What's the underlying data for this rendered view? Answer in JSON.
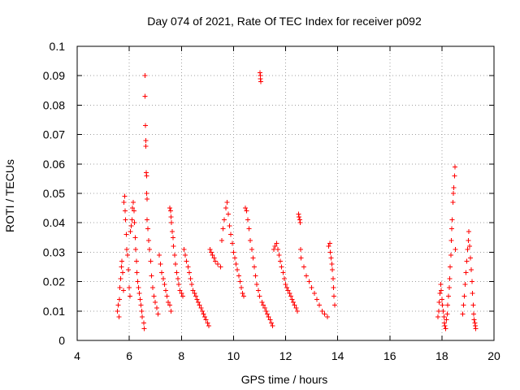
{
  "chart_data": {
    "type": "scatter",
    "title": "Day 074 of 2021, Rate Of TEC Index for receiver p092",
    "xlabel": "GPS time / hours",
    "ylabel": "ROTI / TECUs",
    "xlim": [
      4,
      20
    ],
    "ylim": [
      0,
      0.1
    ],
    "x_ticks": [
      4,
      6,
      8,
      10,
      12,
      14,
      16,
      18,
      20
    ],
    "y_ticks": [
      0,
      0.01,
      0.02,
      0.03,
      0.04,
      0.05,
      0.06,
      0.07,
      0.08,
      0.09,
      0.1
    ],
    "x_tick_labels": [
      "4",
      "6",
      "8",
      "10",
      "12",
      "14",
      "16",
      "18",
      "20"
    ],
    "y_tick_labels": [
      "0",
      "0.01",
      "0.02",
      "0.03",
      "0.04",
      "0.05",
      "0.06",
      "0.07",
      "0.08",
      "0.09",
      "0.1"
    ],
    "grid": true,
    "marker": "plus",
    "series": [
      {
        "name": "ROTI",
        "color": "#ff0000",
        "points": [
          [
            5.55,
            0.01
          ],
          [
            5.58,
            0.012
          ],
          [
            5.6,
            0.008
          ],
          [
            5.62,
            0.014
          ],
          [
            5.64,
            0.018
          ],
          [
            5.67,
            0.021
          ],
          [
            5.7,
            0.025
          ],
          [
            5.72,
            0.027
          ],
          [
            5.74,
            0.023
          ],
          [
            5.77,
            0.017
          ],
          [
            5.8,
            0.047
          ],
          [
            5.82,
            0.049
          ],
          [
            5.84,
            0.044
          ],
          [
            5.86,
            0.041
          ],
          [
            5.89,
            0.036
          ],
          [
            5.91,
            0.031
          ],
          [
            5.94,
            0.029
          ],
          [
            5.96,
            0.024
          ],
          [
            5.99,
            0.018
          ],
          [
            6.02,
            0.015
          ],
          [
            6.05,
            0.037
          ],
          [
            6.08,
            0.039
          ],
          [
            6.1,
            0.041
          ],
          [
            6.12,
            0.045
          ],
          [
            6.15,
            0.047
          ],
          [
            6.18,
            0.044
          ],
          [
            6.2,
            0.04
          ],
          [
            6.23,
            0.035
          ],
          [
            6.25,
            0.031
          ],
          [
            6.28,
            0.027
          ],
          [
            6.3,
            0.023
          ],
          [
            6.33,
            0.02
          ],
          [
            6.36,
            0.018
          ],
          [
            6.39,
            0.016
          ],
          [
            6.42,
            0.014
          ],
          [
            6.45,
            0.012
          ],
          [
            6.48,
            0.01
          ],
          [
            6.5,
            0.008
          ],
          [
            6.55,
            0.006
          ],
          [
            6.58,
            0.004
          ],
          [
            6.6,
            0.083
          ],
          [
            6.61,
            0.09
          ],
          [
            6.62,
            0.073
          ],
          [
            6.63,
            0.068
          ],
          [
            6.64,
            0.066
          ],
          [
            6.65,
            0.057
          ],
          [
            6.66,
            0.056
          ],
          [
            6.67,
            0.05
          ],
          [
            6.68,
            0.048
          ],
          [
            6.69,
            0.041
          ],
          [
            6.72,
            0.038
          ],
          [
            6.75,
            0.034
          ],
          [
            6.78,
            0.031
          ],
          [
            6.82,
            0.027
          ],
          [
            6.86,
            0.022
          ],
          [
            6.9,
            0.018
          ],
          [
            6.95,
            0.015
          ],
          [
            7.0,
            0.013
          ],
          [
            7.05,
            0.011
          ],
          [
            7.1,
            0.009
          ],
          [
            7.15,
            0.029
          ],
          [
            7.2,
            0.026
          ],
          [
            7.25,
            0.023
          ],
          [
            7.3,
            0.021
          ],
          [
            7.35,
            0.019
          ],
          [
            7.4,
            0.017
          ],
          [
            7.45,
            0.015
          ],
          [
            7.5,
            0.013
          ],
          [
            7.55,
            0.012
          ],
          [
            7.6,
            0.01
          ],
          [
            7.55,
            0.045
          ],
          [
            7.58,
            0.044
          ],
          [
            7.6,
            0.042
          ],
          [
            7.62,
            0.04
          ],
          [
            7.65,
            0.037
          ],
          [
            7.68,
            0.035
          ],
          [
            7.7,
            0.032
          ],
          [
            7.74,
            0.029
          ],
          [
            7.78,
            0.026
          ],
          [
            7.82,
            0.023
          ],
          [
            7.86,
            0.021
          ],
          [
            7.9,
            0.019
          ],
          [
            7.95,
            0.017
          ],
          [
            8.0,
            0.016
          ],
          [
            8.05,
            0.015
          ],
          [
            8.1,
            0.031
          ],
          [
            8.15,
            0.029
          ],
          [
            8.2,
            0.027
          ],
          [
            8.25,
            0.025
          ],
          [
            8.3,
            0.023
          ],
          [
            8.35,
            0.021
          ],
          [
            8.4,
            0.019
          ],
          [
            8.45,
            0.017
          ],
          [
            8.5,
            0.016
          ],
          [
            8.55,
            0.015
          ],
          [
            8.6,
            0.014
          ],
          [
            8.65,
            0.013
          ],
          [
            8.7,
            0.012
          ],
          [
            8.75,
            0.011
          ],
          [
            8.8,
            0.01
          ],
          [
            8.85,
            0.009
          ],
          [
            8.9,
            0.008
          ],
          [
            8.95,
            0.007
          ],
          [
            9.0,
            0.006
          ],
          [
            9.05,
            0.005
          ],
          [
            9.1,
            0.031
          ],
          [
            9.15,
            0.03
          ],
          [
            9.2,
            0.029
          ],
          [
            9.25,
            0.028
          ],
          [
            9.3,
            0.027
          ],
          [
            9.4,
            0.026
          ],
          [
            9.5,
            0.025
          ],
          [
            9.55,
            0.034
          ],
          [
            9.6,
            0.038
          ],
          [
            9.65,
            0.041
          ],
          [
            9.7,
            0.045
          ],
          [
            9.75,
            0.047
          ],
          [
            9.8,
            0.043
          ],
          [
            9.85,
            0.039
          ],
          [
            9.9,
            0.036
          ],
          [
            9.95,
            0.033
          ],
          [
            10.0,
            0.03
          ],
          [
            10.05,
            0.028
          ],
          [
            10.1,
            0.026
          ],
          [
            10.15,
            0.024
          ],
          [
            10.2,
            0.022
          ],
          [
            10.25,
            0.02
          ],
          [
            10.3,
            0.018
          ],
          [
            10.35,
            0.016
          ],
          [
            10.4,
            0.015
          ],
          [
            10.45,
            0.045
          ],
          [
            10.5,
            0.044
          ],
          [
            10.55,
            0.041
          ],
          [
            10.6,
            0.038
          ],
          [
            10.65,
            0.034
          ],
          [
            10.7,
            0.031
          ],
          [
            10.75,
            0.028
          ],
          [
            10.8,
            0.025
          ],
          [
            10.85,
            0.022
          ],
          [
            10.9,
            0.019
          ],
          [
            10.95,
            0.017
          ],
          [
            11.0,
            0.015
          ],
          [
            11.02,
            0.091
          ],
          [
            11.03,
            0.09
          ],
          [
            11.04,
            0.089
          ],
          [
            11.05,
            0.088
          ],
          [
            11.1,
            0.013
          ],
          [
            11.15,
            0.012
          ],
          [
            11.2,
            0.011
          ],
          [
            11.25,
            0.01
          ],
          [
            11.3,
            0.009
          ],
          [
            11.35,
            0.008
          ],
          [
            11.4,
            0.007
          ],
          [
            11.45,
            0.006
          ],
          [
            11.5,
            0.005
          ],
          [
            11.55,
            0.031
          ],
          [
            11.6,
            0.032
          ],
          [
            11.65,
            0.033
          ],
          [
            11.7,
            0.031
          ],
          [
            11.75,
            0.029
          ],
          [
            11.8,
            0.027
          ],
          [
            11.85,
            0.025
          ],
          [
            11.9,
            0.023
          ],
          [
            11.95,
            0.021
          ],
          [
            12.0,
            0.019
          ],
          [
            12.05,
            0.018
          ],
          [
            12.1,
            0.017
          ],
          [
            12.15,
            0.016
          ],
          [
            12.2,
            0.015
          ],
          [
            12.25,
            0.014
          ],
          [
            12.3,
            0.013
          ],
          [
            12.35,
            0.012
          ],
          [
            12.4,
            0.011
          ],
          [
            12.45,
            0.01
          ],
          [
            12.5,
            0.043
          ],
          [
            12.52,
            0.042
          ],
          [
            12.54,
            0.041
          ],
          [
            12.56,
            0.04
          ],
          [
            12.58,
            0.031
          ],
          [
            12.6,
            0.028
          ],
          [
            12.7,
            0.025
          ],
          [
            12.8,
            0.022
          ],
          [
            12.9,
            0.02
          ],
          [
            13.0,
            0.018
          ],
          [
            13.1,
            0.016
          ],
          [
            13.2,
            0.014
          ],
          [
            13.3,
            0.012
          ],
          [
            13.4,
            0.01
          ],
          [
            13.5,
            0.009
          ],
          [
            13.6,
            0.008
          ],
          [
            13.65,
            0.032
          ],
          [
            13.7,
            0.033
          ],
          [
            13.72,
            0.03
          ],
          [
            13.75,
            0.028
          ],
          [
            13.78,
            0.026
          ],
          [
            13.8,
            0.024
          ],
          [
            13.82,
            0.021
          ],
          [
            13.84,
            0.018
          ],
          [
            13.86,
            0.015
          ],
          [
            13.88,
            0.012
          ],
          [
            17.85,
            0.008
          ],
          [
            17.88,
            0.01
          ],
          [
            17.9,
            0.013
          ],
          [
            17.92,
            0.016
          ],
          [
            17.95,
            0.019
          ],
          [
            17.98,
            0.017
          ],
          [
            18.0,
            0.014
          ],
          [
            18.02,
            0.012
          ],
          [
            18.05,
            0.01
          ],
          [
            18.08,
            0.008
          ],
          [
            18.1,
            0.006
          ],
          [
            18.12,
            0.005
          ],
          [
            18.15,
            0.004
          ],
          [
            18.18,
            0.007
          ],
          [
            18.2,
            0.009
          ],
          [
            18.22,
            0.012
          ],
          [
            18.25,
            0.015
          ],
          [
            18.28,
            0.018
          ],
          [
            18.3,
            0.021
          ],
          [
            18.32,
            0.025
          ],
          [
            18.34,
            0.029
          ],
          [
            18.36,
            0.034
          ],
          [
            18.38,
            0.038
          ],
          [
            18.4,
            0.041
          ],
          [
            18.42,
            0.047
          ],
          [
            18.44,
            0.05
          ],
          [
            18.46,
            0.052
          ],
          [
            18.48,
            0.056
          ],
          [
            18.5,
            0.059
          ],
          [
            18.52,
            0.031
          ],
          [
            18.8,
            0.009
          ],
          [
            18.83,
            0.012
          ],
          [
            18.86,
            0.015
          ],
          [
            18.89,
            0.019
          ],
          [
            18.92,
            0.023
          ],
          [
            18.95,
            0.027
          ],
          [
            18.98,
            0.031
          ],
          [
            19.01,
            0.034
          ],
          [
            19.04,
            0.037
          ],
          [
            19.07,
            0.032
          ],
          [
            19.1,
            0.028
          ],
          [
            19.13,
            0.024
          ],
          [
            19.16,
            0.02
          ],
          [
            19.18,
            0.016
          ],
          [
            19.2,
            0.012
          ],
          [
            19.22,
            0.009
          ],
          [
            19.24,
            0.007
          ],
          [
            19.26,
            0.006
          ],
          [
            19.28,
            0.005
          ],
          [
            19.3,
            0.004
          ]
        ]
      }
    ]
  }
}
